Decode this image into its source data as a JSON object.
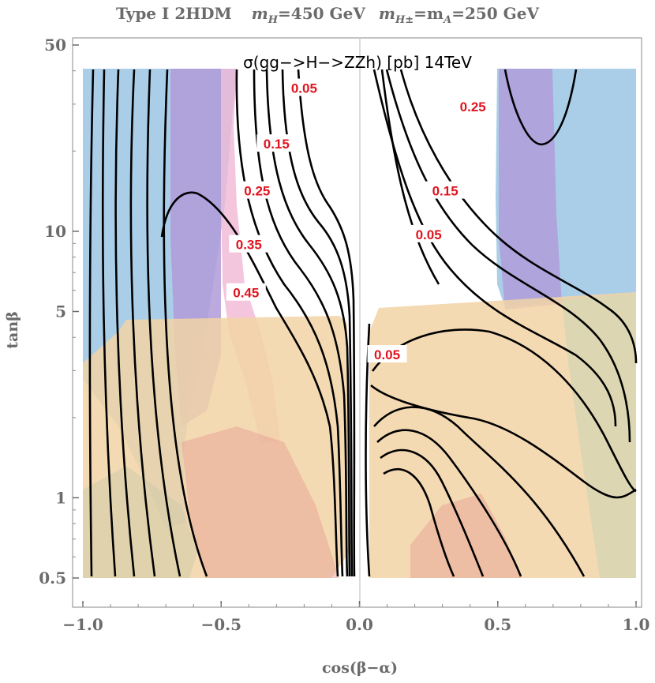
{
  "chart_data": {
    "type": "contour",
    "title": "Type I 2HDM   m_H=450 GeV  m_H±=m_A=250 GeV",
    "title_parts": {
      "model": "Type I 2HDM",
      "mH": "=450 GeV",
      "mHpm_mA": "=m",
      "mA_value": "=250 GeV"
    },
    "inset_title": "σ(gg−>H−>ZZh) [pb] 14TeV",
    "xlabel": "cos(β−α)",
    "ylabel": "tanβ",
    "xlim": [
      -1.0,
      1.0
    ],
    "ylim": [
      0.35,
      50
    ],
    "yscale": "log",
    "x_ticks": [
      "−1.0",
      "−0.5",
      "0.0",
      "0.5",
      "1.0"
    ],
    "y_ticks": [
      "0.5",
      "1",
      "5",
      "10",
      "50"
    ],
    "x_tick_values": [
      -1.0,
      -0.5,
      0.0,
      0.5,
      1.0
    ],
    "y_tick_values": [
      0.5,
      1,
      5,
      10,
      50
    ],
    "contour_labels": [
      {
        "text": "0.05",
        "x": -0.2,
        "y": 34
      },
      {
        "text": "0.15",
        "x": -0.3,
        "y": 21
      },
      {
        "text": "0.25",
        "x": -0.37,
        "y": 14
      },
      {
        "text": "0.35",
        "x": -0.4,
        "y": 8.8
      },
      {
        "text": "0.45",
        "x": -0.41,
        "y": 5.8
      },
      {
        "text": "0.25",
        "x": 0.41,
        "y": 29
      },
      {
        "text": "0.15",
        "x": 0.31,
        "y": 14
      },
      {
        "text": "0.05",
        "x": 0.25,
        "y": 9.6
      },
      {
        "text": "0.05",
        "x": 0.1,
        "y": 3.4
      }
    ],
    "colors": {
      "blue_region": "#8fbde0",
      "purple_region": "#b09ad8",
      "pink_region": "#f1b8d6",
      "orange_region": "#f2d3a6",
      "red_region": "#e8a598",
      "contour": "#000000",
      "label": "#e0141e",
      "axis": "#6b6b6b"
    }
  }
}
